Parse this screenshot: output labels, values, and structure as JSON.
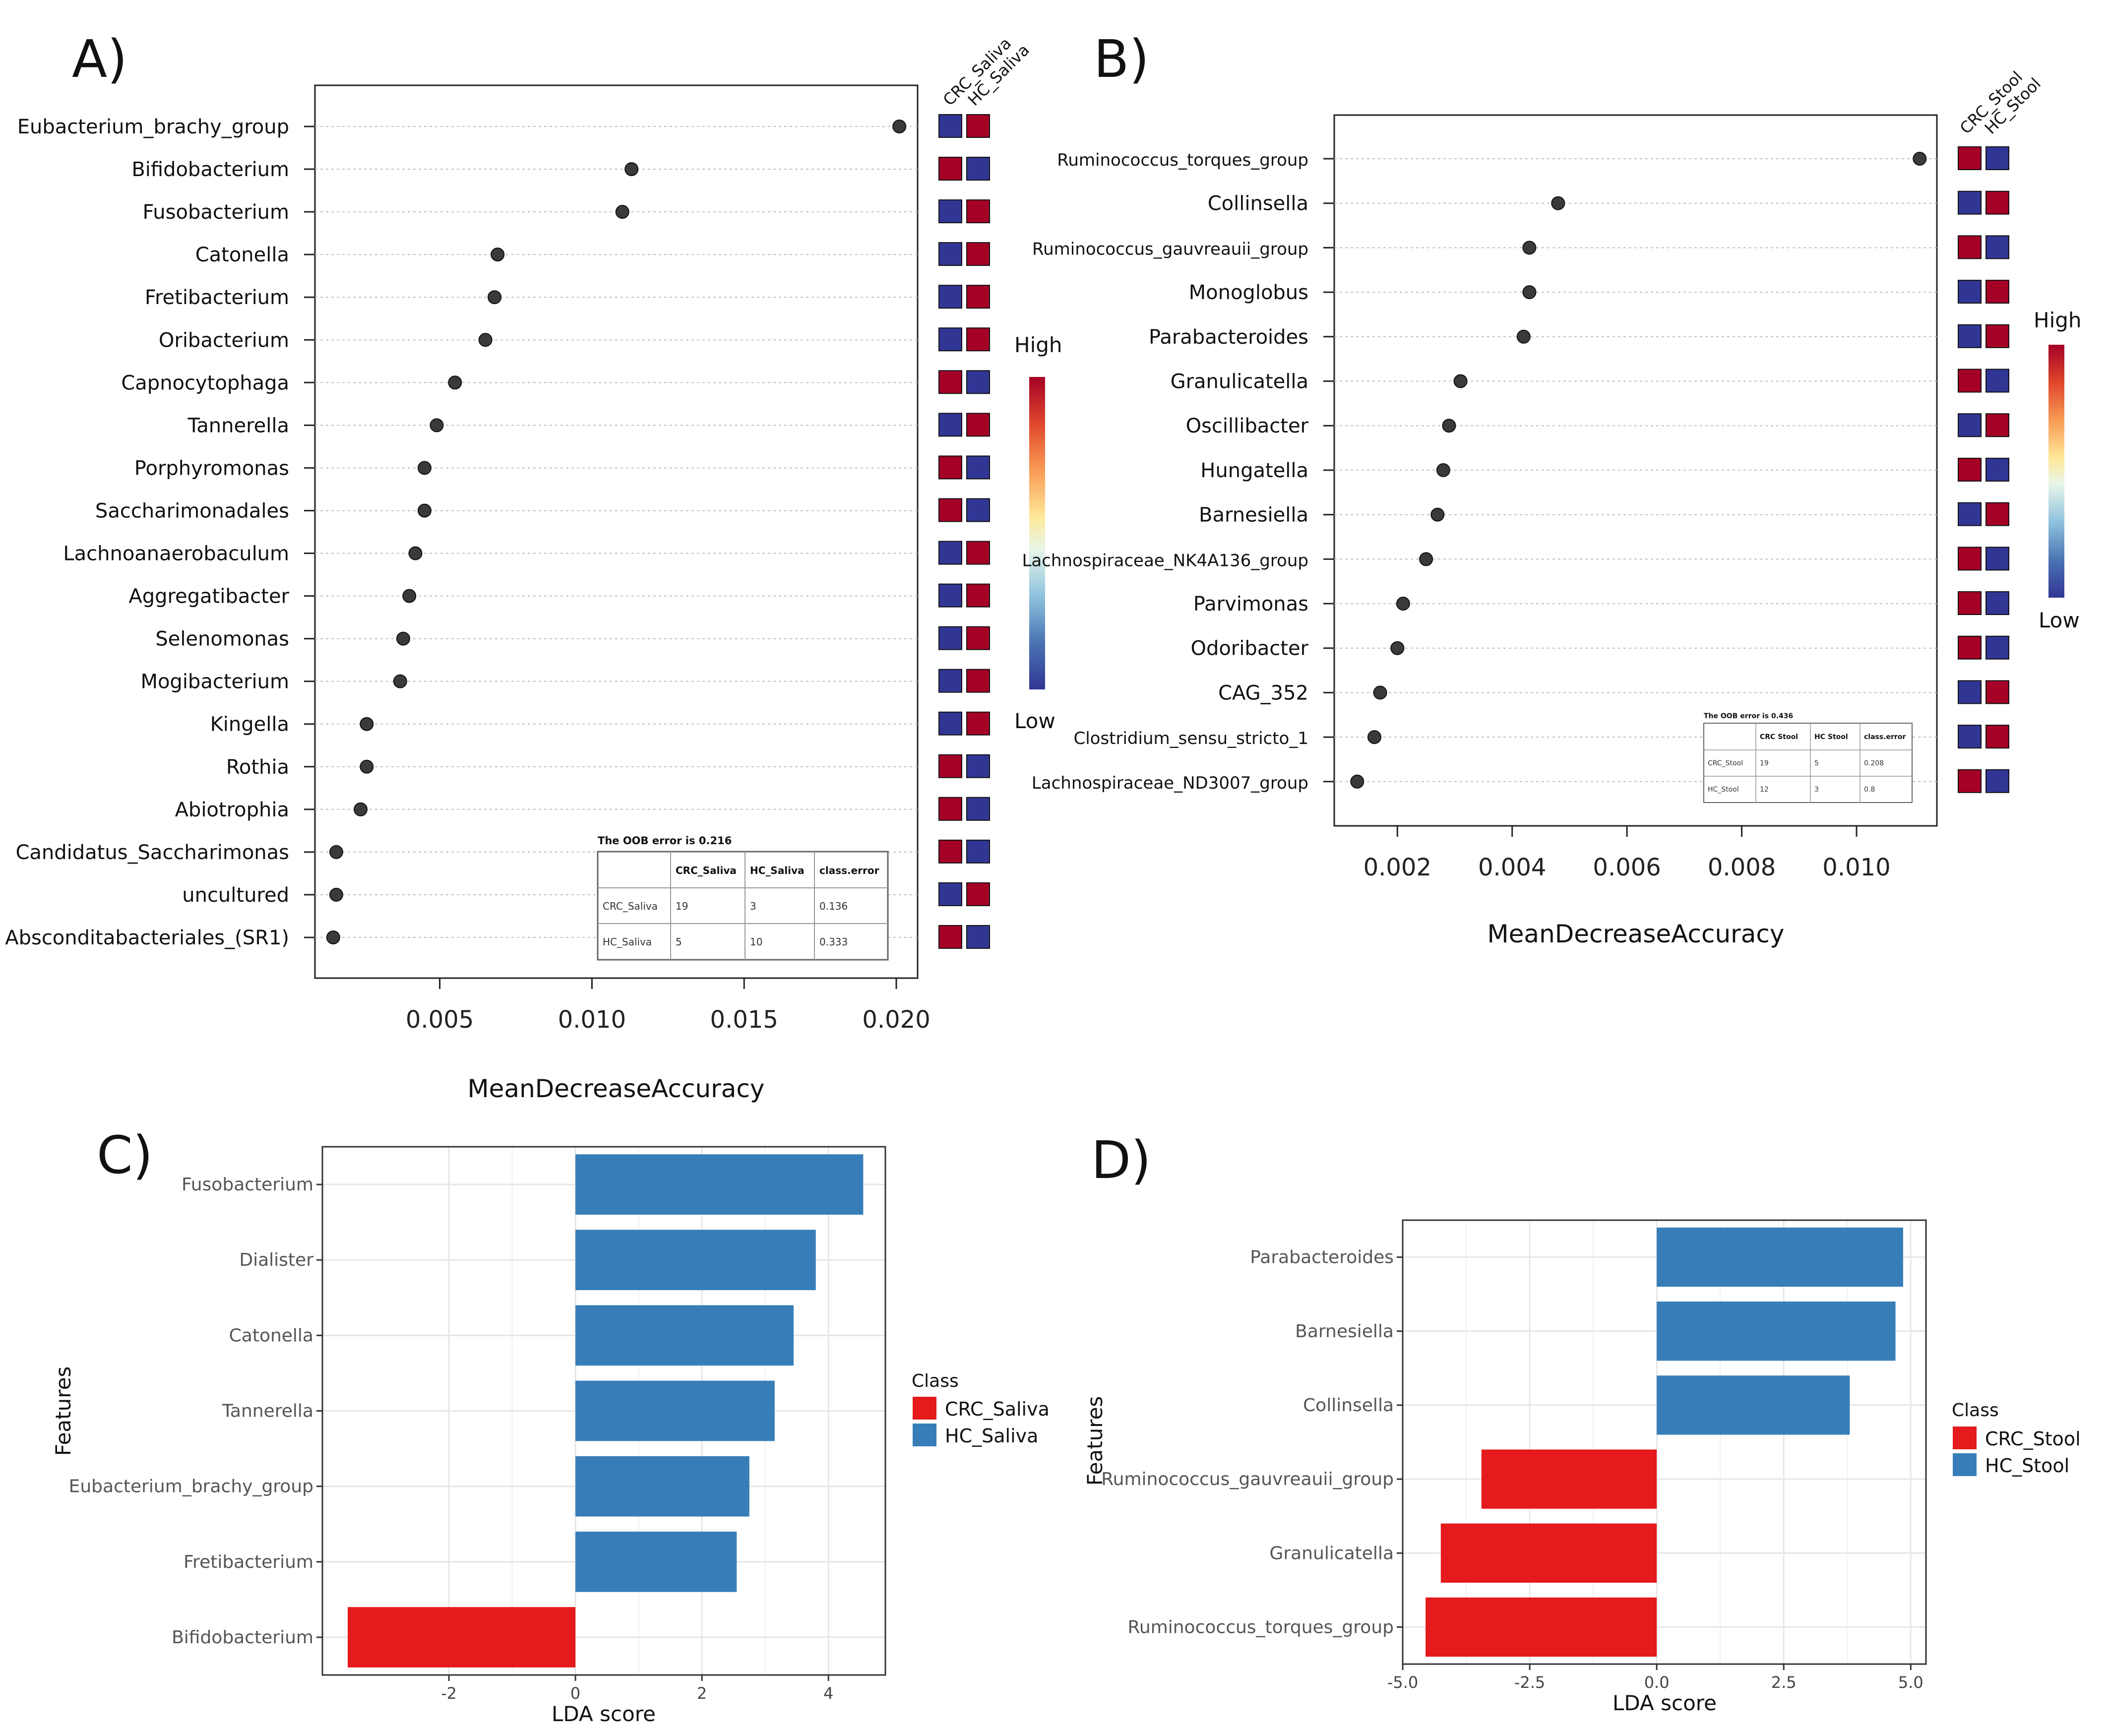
{
  "colors": {
    "high": "#a50026",
    "low": "#313695",
    "crc": "#e41a1c",
    "hc": "#377eb8",
    "dot": "#3a3a3a",
    "grid": "#bfbfbf",
    "ldagrid": "#e6e6e6"
  },
  "panels": {
    "a": "A)",
    "b": "B)",
    "c": "C)",
    "d": "D)"
  },
  "chart_data": [
    {
      "type": "scatter",
      "panel": "A)",
      "xlabel": "MeanDecreaseAccuracy",
      "xlim": [
        0.0009,
        0.0207
      ],
      "xticks": [
        0.005,
        0.01,
        0.015,
        0.02
      ],
      "xtick_labels": [
        "0.005",
        "0.010",
        "0.015",
        "0.020"
      ],
      "categories": [
        "Eubacterium_brachy_group",
        "Bifidobacterium",
        "Fusobacterium",
        "Catonella",
        "Fretibacterium",
        "Oribacterium",
        "Capnocytophaga",
        "Tannerella",
        "Porphyromonas",
        "Saccharimonadales",
        "Lachnoanaerobaculum",
        "Aggregatibacter",
        "Selenomonas",
        "Mogibacterium",
        "Kingella",
        "Rothia",
        "Abiotrophia",
        "Candidatus_Saccharimonas",
        "uncultured",
        "Absconditabacteriales_(SR1)"
      ],
      "values": [
        0.0201,
        0.0113,
        0.011,
        0.0069,
        0.0068,
        0.0065,
        0.0055,
        0.0049,
        0.0045,
        0.0045,
        0.0042,
        0.004,
        0.0038,
        0.0037,
        0.0026,
        0.0026,
        0.0024,
        0.0016,
        0.0016,
        0.0015
      ],
      "class_columns": [
        "CRC_Saliva",
        "HC_Saliva"
      ],
      "class_levels": [
        [
          "low",
          "high"
        ],
        [
          "high",
          "low"
        ],
        [
          "low",
          "high"
        ],
        [
          "low",
          "high"
        ],
        [
          "low",
          "high"
        ],
        [
          "low",
          "high"
        ],
        [
          "high",
          "low"
        ],
        [
          "low",
          "high"
        ],
        [
          "high",
          "low"
        ],
        [
          "high",
          "low"
        ],
        [
          "low",
          "high"
        ],
        [
          "low",
          "high"
        ],
        [
          "low",
          "high"
        ],
        [
          "low",
          "high"
        ],
        [
          "low",
          "high"
        ],
        [
          "high",
          "low"
        ],
        [
          "high",
          "low"
        ],
        [
          "high",
          "low"
        ],
        [
          "low",
          "high"
        ],
        [
          "high",
          "low"
        ]
      ],
      "colorbar": {
        "high": "High",
        "low": "Low"
      },
      "oob": {
        "title": "The OOB error is 0.216",
        "header": [
          "",
          "CRC_Saliva",
          "HC_Saliva",
          "class.error"
        ],
        "rows": [
          [
            "CRC_Saliva",
            "19",
            "3",
            "0.136"
          ],
          [
            "HC_Saliva",
            "5",
            "10",
            "0.333"
          ]
        ]
      }
    },
    {
      "type": "scatter",
      "panel": "B)",
      "xlabel": "MeanDecreaseAccuracy",
      "xlim": [
        0.0009,
        0.0114
      ],
      "xticks": [
        0.002,
        0.004,
        0.006,
        0.008,
        0.01
      ],
      "xtick_labels": [
        "0.002",
        "0.004",
        "0.006",
        "0.008",
        "0.010"
      ],
      "categories": [
        "Ruminococcus_torques_group",
        "Collinsella",
        "Ruminococcus_gauvreauii_group",
        "Monoglobus",
        "Parabacteroides",
        "Granulicatella",
        "Oscillibacter",
        "Hungatella",
        "Barnesiella",
        "Lachnospiraceae_NK4A136_group",
        "Parvimonas",
        "Odoribacter",
        "CAG_352",
        "Clostridium_sensu_stricto_1",
        "Lachnospiraceae_ND3007_group"
      ],
      "values": [
        0.0111,
        0.0048,
        0.0043,
        0.0043,
        0.0042,
        0.0031,
        0.0029,
        0.0028,
        0.0027,
        0.0025,
        0.0021,
        0.002,
        0.0017,
        0.0016,
        0.0013
      ],
      "class_columns": [
        "CRC_Stool",
        "HC_Stool"
      ],
      "class_levels": [
        [
          "high",
          "low"
        ],
        [
          "low",
          "high"
        ],
        [
          "high",
          "low"
        ],
        [
          "low",
          "high"
        ],
        [
          "low",
          "high"
        ],
        [
          "high",
          "low"
        ],
        [
          "low",
          "high"
        ],
        [
          "high",
          "low"
        ],
        [
          "low",
          "high"
        ],
        [
          "high",
          "low"
        ],
        [
          "high",
          "low"
        ],
        [
          "high",
          "low"
        ],
        [
          "low",
          "high"
        ],
        [
          "low",
          "high"
        ],
        [
          "high",
          "low"
        ]
      ],
      "colorbar": {
        "high": "High",
        "low": "Low"
      },
      "oob": {
        "title": "The OOB error is 0.436",
        "header": [
          "",
          "CRC Stool",
          "HC Stool",
          "class.error"
        ],
        "rows": [
          [
            "CRC_Stool",
            "19",
            "5",
            "0.208"
          ],
          [
            "HC_Stool",
            "12",
            "3",
            "0.8"
          ]
        ]
      }
    },
    {
      "type": "bar",
      "orientation": "horizontal",
      "panel": "C)",
      "xlabel": "LDA score",
      "ylabel": "Features",
      "xlim": [
        -4.0,
        4.9
      ],
      "xticks": [
        -2,
        0,
        2,
        4
      ],
      "xtick_labels": [
        "-2",
        "0",
        "2",
        "4"
      ],
      "categories": [
        "Fusobacterium",
        "Dialister",
        "Catonella",
        "Tannerella",
        "Eubacterium_brachy_group",
        "Fretibacterium",
        "Bifidobacterium"
      ],
      "values": [
        4.55,
        3.8,
        3.45,
        3.15,
        2.75,
        2.55,
        -3.6
      ],
      "classes": [
        "HC_Saliva",
        "HC_Saliva",
        "HC_Saliva",
        "HC_Saliva",
        "HC_Saliva",
        "HC_Saliva",
        "CRC_Saliva"
      ],
      "legend": {
        "title": "Class",
        "items": [
          "CRC_Saliva",
          "HC_Saliva"
        ]
      }
    },
    {
      "type": "bar",
      "orientation": "horizontal",
      "panel": "D)",
      "xlabel": "LDA score",
      "ylabel": "Features",
      "xlim": [
        -5.0,
        5.3
      ],
      "xticks": [
        -5.0,
        -2.5,
        0.0,
        2.5,
        5.0
      ],
      "xtick_labels": [
        "-5.0",
        "-2.5",
        "0.0",
        "2.5",
        "5.0"
      ],
      "categories": [
        "Parabacteroides",
        "Barnesiella",
        "Collinsella",
        "Ruminococcus_gauvreauii_group",
        "Granulicatella",
        "Ruminococcus_torques_group"
      ],
      "values": [
        4.85,
        4.7,
        3.8,
        -3.45,
        -4.25,
        -4.55
      ],
      "classes": [
        "HC_Stool",
        "HC_Stool",
        "HC_Stool",
        "CRC_Stool",
        "CRC_Stool",
        "CRC_Stool"
      ],
      "legend": {
        "title": "Class",
        "items": [
          "CRC_Stool",
          "HC_Stool"
        ]
      }
    }
  ]
}
